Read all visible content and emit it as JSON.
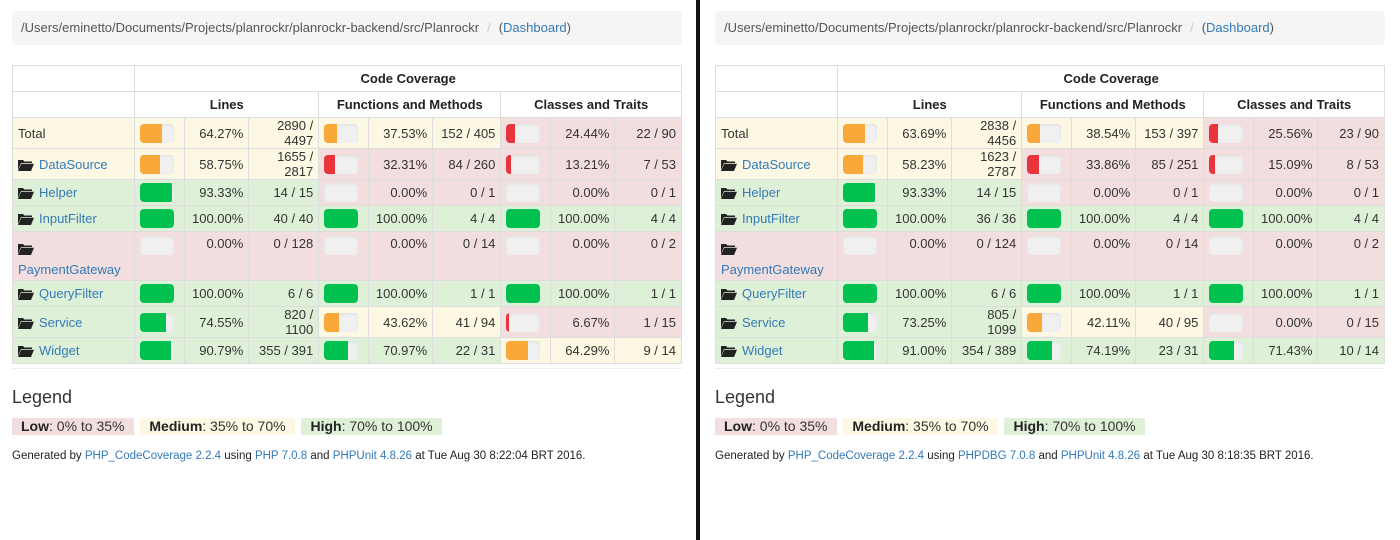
{
  "colors": {
    "high_bg": "#dff0d8",
    "medium_bg": "#fcf8e3",
    "low_bg": "#f2dede",
    "high_bar": "#00c050",
    "medium_bar": "#f9a93a",
    "low_bar": "#e8353b",
    "link": "#337ab7"
  },
  "headers": {
    "code_coverage": "Code Coverage",
    "lines": "Lines",
    "functions": "Functions and Methods",
    "classes": "Classes and Traits"
  },
  "legend": {
    "title": "Legend",
    "low_label": "Low",
    "low_range": ": 0% to 35%",
    "medium_label": "Medium",
    "medium_range": ": 35% to 70%",
    "high_label": "High",
    "high_range": ": 70% to 100%"
  },
  "panels": [
    {
      "breadcrumb": {
        "path": "/Users/eminetto/Documents/Projects/planrockr/planrockr-backend/src/Planrockr",
        "separator": "/",
        "dashboard_link": "Dashboard"
      },
      "rows": [
        {
          "name": "Total",
          "is_folder": false,
          "tall": false,
          "lines": {
            "pct": "64.27%",
            "count": "2890 / 4497",
            "value": 64.27,
            "level": "warning"
          },
          "functions": {
            "pct": "37.53%",
            "count": "152 / 405",
            "value": 37.53,
            "level": "warning"
          },
          "classes": {
            "pct": "24.44%",
            "count": "22 / 90",
            "value": 24.44,
            "level": "danger"
          }
        },
        {
          "name": "DataSource",
          "is_folder": true,
          "tall": false,
          "lines": {
            "pct": "58.75%",
            "count": "1655 / 2817",
            "value": 58.75,
            "level": "warning"
          },
          "functions": {
            "pct": "32.31%",
            "count": "84 / 260",
            "value": 32.31,
            "level": "danger"
          },
          "classes": {
            "pct": "13.21%",
            "count": "7 / 53",
            "value": 13.21,
            "level": "danger"
          }
        },
        {
          "name": "Helper",
          "is_folder": true,
          "tall": false,
          "lines": {
            "pct": "93.33%",
            "count": "14 / 15",
            "value": 93.33,
            "level": "success"
          },
          "functions": {
            "pct": "0.00%",
            "count": "0 / 1",
            "value": 0,
            "level": "danger"
          },
          "classes": {
            "pct": "0.00%",
            "count": "0 / 1",
            "value": 0,
            "level": "danger"
          }
        },
        {
          "name": "InputFilter",
          "is_folder": true,
          "tall": false,
          "lines": {
            "pct": "100.00%",
            "count": "40 / 40",
            "value": 100,
            "level": "success"
          },
          "functions": {
            "pct": "100.00%",
            "count": "4 / 4",
            "value": 100,
            "level": "success"
          },
          "classes": {
            "pct": "100.00%",
            "count": "4 / 4",
            "value": 100,
            "level": "success"
          }
        },
        {
          "name": "PaymentGateway",
          "is_folder": true,
          "tall": true,
          "lines": {
            "pct": "0.00%",
            "count": "0 / 128",
            "value": 0,
            "level": "danger"
          },
          "functions": {
            "pct": "0.00%",
            "count": "0 / 14",
            "value": 0,
            "level": "danger"
          },
          "classes": {
            "pct": "0.00%",
            "count": "0 / 2",
            "value": 0,
            "level": "danger"
          }
        },
        {
          "name": "QueryFilter",
          "is_folder": true,
          "tall": false,
          "lines": {
            "pct": "100.00%",
            "count": "6 / 6",
            "value": 100,
            "level": "success"
          },
          "functions": {
            "pct": "100.00%",
            "count": "1 / 1",
            "value": 100,
            "level": "success"
          },
          "classes": {
            "pct": "100.00%",
            "count": "1 / 1",
            "value": 100,
            "level": "success"
          }
        },
        {
          "name": "Service",
          "is_folder": true,
          "tall": false,
          "lines": {
            "pct": "74.55%",
            "count": "820 / 1100",
            "value": 74.55,
            "level": "success"
          },
          "functions": {
            "pct": "43.62%",
            "count": "41 / 94",
            "value": 43.62,
            "level": "warning"
          },
          "classes": {
            "pct": "6.67%",
            "count": "1 / 15",
            "value": 6.67,
            "level": "danger"
          }
        },
        {
          "name": "Widget",
          "is_folder": true,
          "tall": false,
          "lines": {
            "pct": "90.79%",
            "count": "355 / 391",
            "value": 90.79,
            "level": "success"
          },
          "functions": {
            "pct": "70.97%",
            "count": "22 / 31",
            "value": 70.97,
            "level": "success"
          },
          "classes": {
            "pct": "64.29%",
            "count": "9 / 14",
            "value": 64.29,
            "level": "warning"
          }
        }
      ],
      "footer": {
        "generated_by": "Generated by ",
        "tool_link": "PHP_CodeCoverage 2.2.4",
        "using": " using ",
        "runtime_link": "PHP 7.0.8",
        "and": " and ",
        "test_link": "PHPUnit 4.8.26",
        "timestamp": " at Tue Aug 30 8:22:04 BRT 2016."
      }
    },
    {
      "breadcrumb": {
        "path": "/Users/eminetto/Documents/Projects/planrockr/planrockr-backend/src/Planrockr",
        "separator": "/",
        "dashboard_link": "Dashboard"
      },
      "rows": [
        {
          "name": "Total",
          "is_folder": false,
          "tall": false,
          "lines": {
            "pct": "63.69%",
            "count": "2838 / 4456",
            "value": 63.69,
            "level": "warning"
          },
          "functions": {
            "pct": "38.54%",
            "count": "153 / 397",
            "value": 38.54,
            "level": "warning"
          },
          "classes": {
            "pct": "25.56%",
            "count": "23 / 90",
            "value": 25.56,
            "level": "danger"
          }
        },
        {
          "name": "DataSource",
          "is_folder": true,
          "tall": false,
          "lines": {
            "pct": "58.23%",
            "count": "1623 / 2787",
            "value": 58.23,
            "level": "warning"
          },
          "functions": {
            "pct": "33.86%",
            "count": "85 / 251",
            "value": 33.86,
            "level": "danger"
          },
          "classes": {
            "pct": "15.09%",
            "count": "8 / 53",
            "value": 15.09,
            "level": "danger"
          }
        },
        {
          "name": "Helper",
          "is_folder": true,
          "tall": false,
          "lines": {
            "pct": "93.33%",
            "count": "14 / 15",
            "value": 93.33,
            "level": "success"
          },
          "functions": {
            "pct": "0.00%",
            "count": "0 / 1",
            "value": 0,
            "level": "danger"
          },
          "classes": {
            "pct": "0.00%",
            "count": "0 / 1",
            "value": 0,
            "level": "danger"
          }
        },
        {
          "name": "InputFilter",
          "is_folder": true,
          "tall": false,
          "lines": {
            "pct": "100.00%",
            "count": "36 / 36",
            "value": 100,
            "level": "success"
          },
          "functions": {
            "pct": "100.00%",
            "count": "4 / 4",
            "value": 100,
            "level": "success"
          },
          "classes": {
            "pct": "100.00%",
            "count": "4 / 4",
            "value": 100,
            "level": "success"
          }
        },
        {
          "name": "PaymentGateway",
          "is_folder": true,
          "tall": true,
          "lines": {
            "pct": "0.00%",
            "count": "0 / 124",
            "value": 0,
            "level": "danger"
          },
          "functions": {
            "pct": "0.00%",
            "count": "0 / 14",
            "value": 0,
            "level": "danger"
          },
          "classes": {
            "pct": "0.00%",
            "count": "0 / 2",
            "value": 0,
            "level": "danger"
          }
        },
        {
          "name": "QueryFilter",
          "is_folder": true,
          "tall": false,
          "lines": {
            "pct": "100.00%",
            "count": "6 / 6",
            "value": 100,
            "level": "success"
          },
          "functions": {
            "pct": "100.00%",
            "count": "1 / 1",
            "value": 100,
            "level": "success"
          },
          "classes": {
            "pct": "100.00%",
            "count": "1 / 1",
            "value": 100,
            "level": "success"
          }
        },
        {
          "name": "Service",
          "is_folder": true,
          "tall": false,
          "lines": {
            "pct": "73.25%",
            "count": "805 / 1099",
            "value": 73.25,
            "level": "success"
          },
          "functions": {
            "pct": "42.11%",
            "count": "40 / 95",
            "value": 42.11,
            "level": "warning"
          },
          "classes": {
            "pct": "0.00%",
            "count": "0 / 15",
            "value": 0,
            "level": "danger"
          }
        },
        {
          "name": "Widget",
          "is_folder": true,
          "tall": false,
          "lines": {
            "pct": "91.00%",
            "count": "354 / 389",
            "value": 91.0,
            "level": "success"
          },
          "functions": {
            "pct": "74.19%",
            "count": "23 / 31",
            "value": 74.19,
            "level": "success"
          },
          "classes": {
            "pct": "71.43%",
            "count": "10 / 14",
            "value": 71.43,
            "level": "success"
          }
        }
      ],
      "footer": {
        "generated_by": "Generated by ",
        "tool_link": "PHP_CodeCoverage 2.2.4",
        "using": " using ",
        "runtime_link": "PHPDBG 7.0.8",
        "and": " and ",
        "test_link": "PHPUnit 4.8.26",
        "timestamp": " at Tue Aug 30 8:18:35 BRT 2016."
      }
    }
  ]
}
